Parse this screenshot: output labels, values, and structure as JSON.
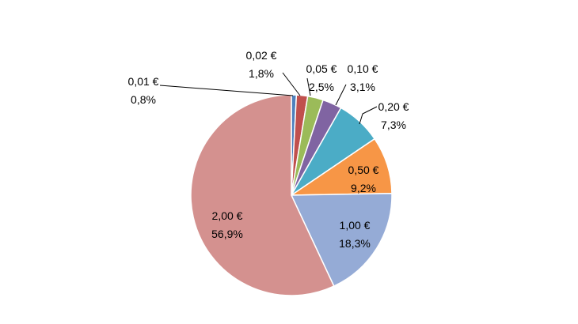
{
  "chart_data": {
    "type": "pie",
    "title": "",
    "categories": [
      "0,01 €",
      "0,02 €",
      "0,05 €",
      "0,10 €",
      "0,20 €",
      "0,50 €",
      "1,00 €",
      "2,00 €"
    ],
    "values": [
      0.8,
      1.8,
      2.5,
      3.1,
      7.3,
      9.2,
      18.3,
      56.9
    ],
    "percent_labels": [
      "0,8%",
      "1,8%",
      "2,5%",
      "3,1%",
      "7,3%",
      "9,2%",
      "18,3%",
      "56,9%"
    ],
    "colors": [
      "#4f81bd",
      "#c0504d",
      "#9bbb59",
      "#8064a2",
      "#4bacc6",
      "#f79646",
      "#95abd6",
      "#d4918f"
    ],
    "start_angle": "12 o'clock",
    "direction": "clockwise",
    "legend": "none"
  }
}
